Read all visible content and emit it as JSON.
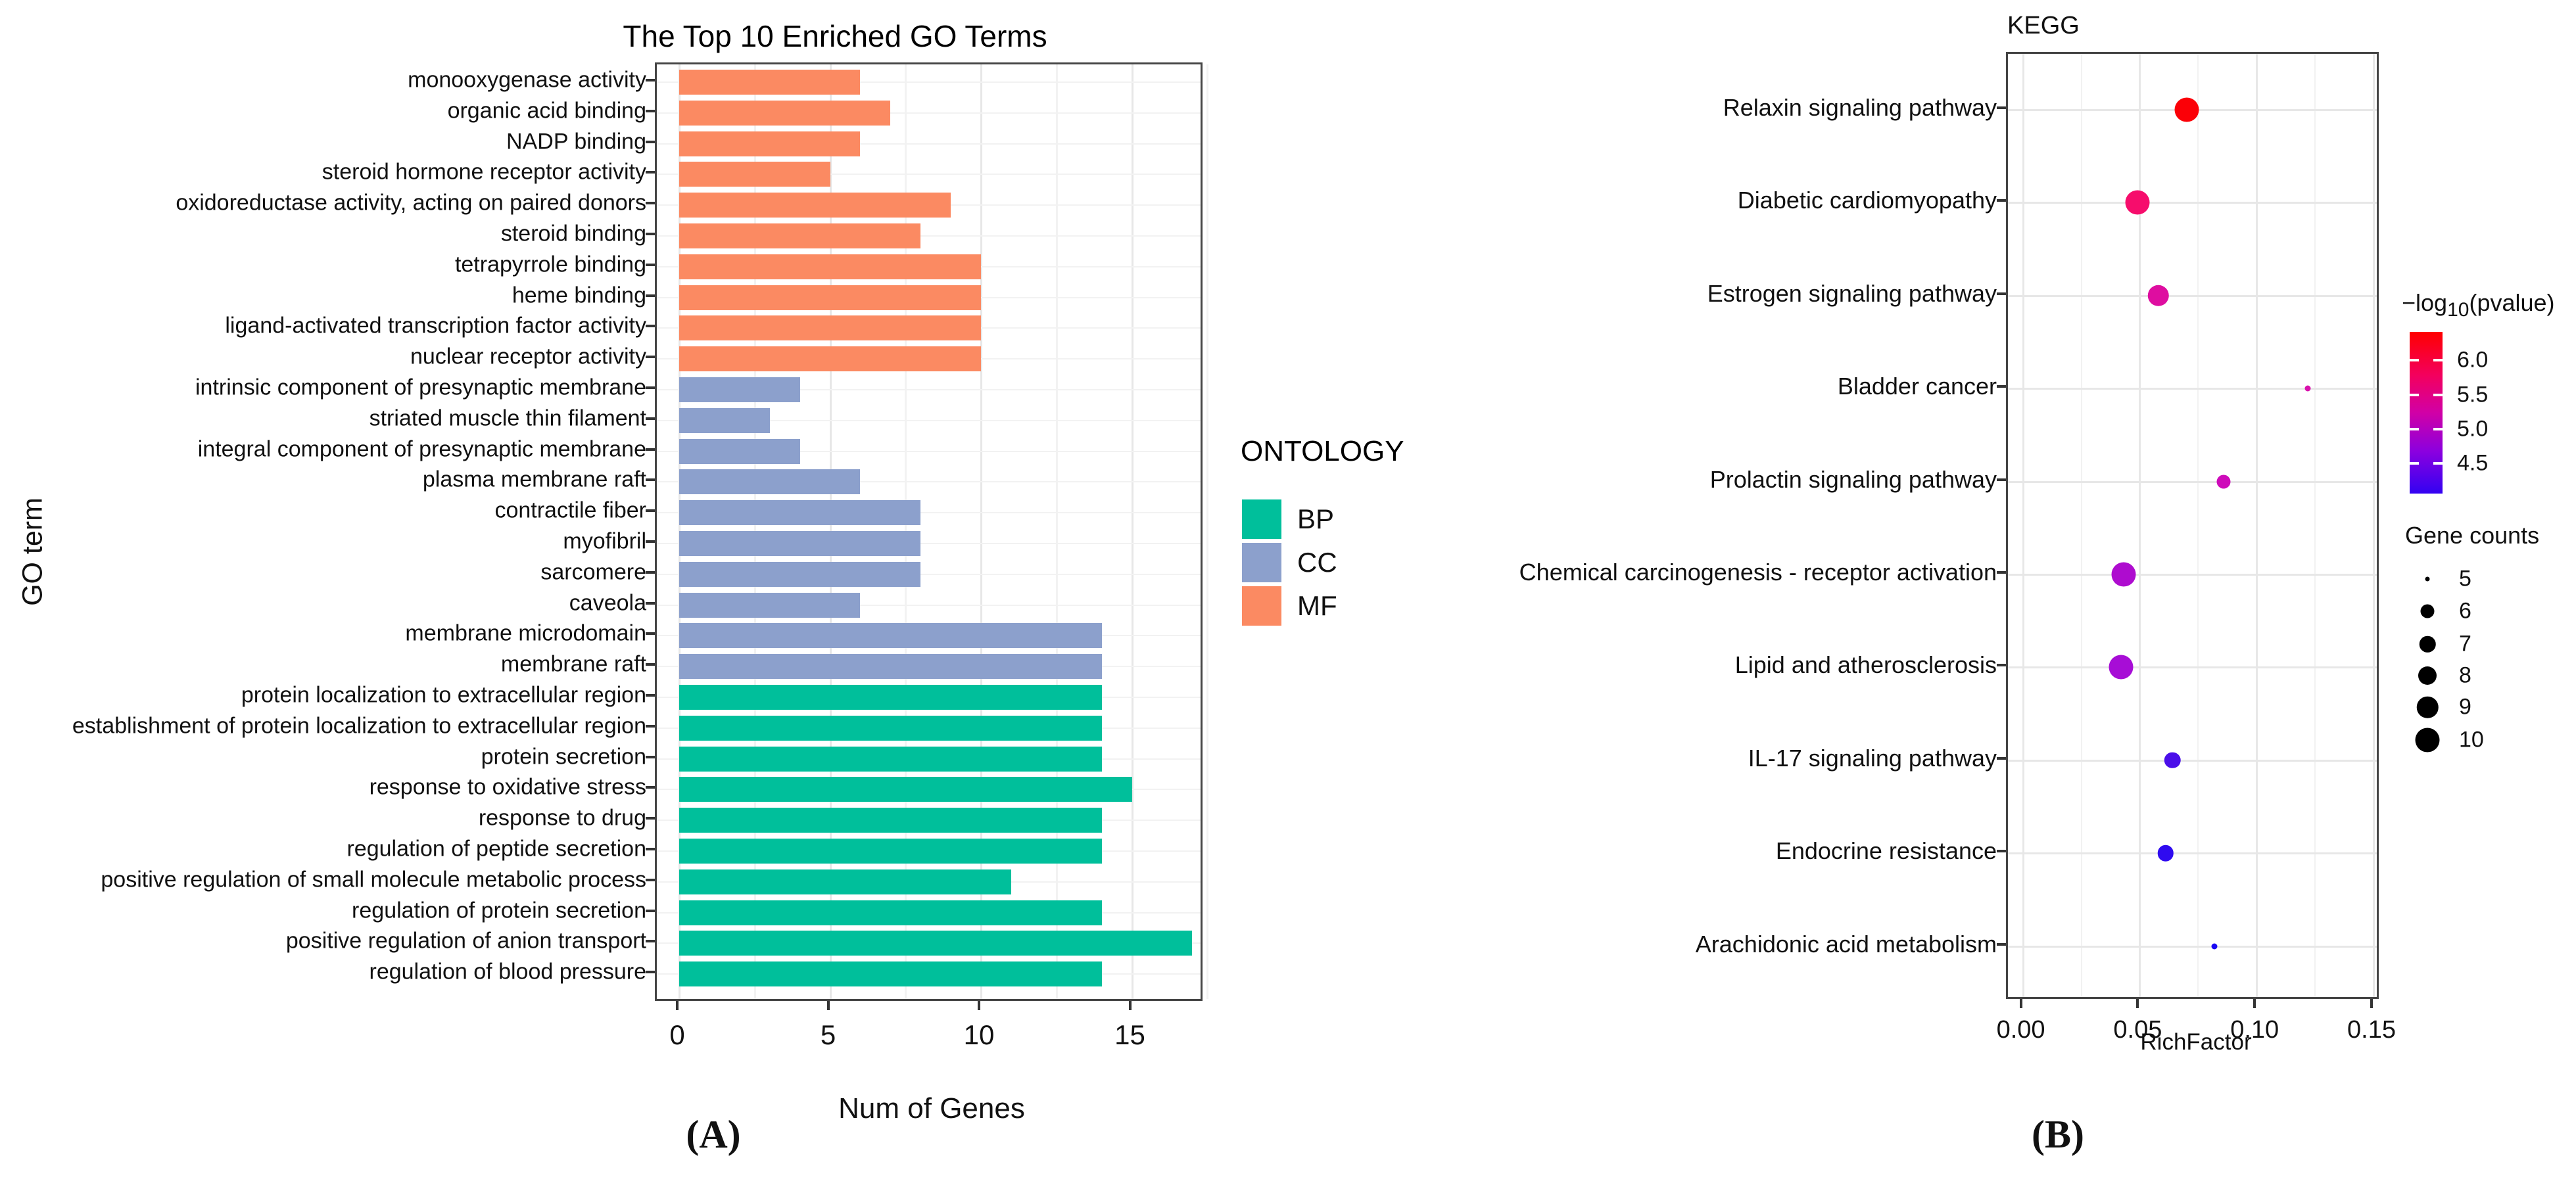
{
  "figure": {
    "panel_a_caption": "(A)",
    "panel_b_caption": "(B)"
  },
  "chart_data": [
    {
      "type": "bar",
      "orientation": "horizontal",
      "title": "The Top 10 Enriched GO Terms",
      "xlabel": "Num of Genes",
      "ylabel": "GO term",
      "xlim": [
        0,
        17.4
      ],
      "xticks": [
        "0",
        "5",
        "10",
        "15"
      ],
      "grid": true,
      "legend": {
        "title": "ONTOLOGY",
        "position": "right",
        "entries": [
          {
            "label": "BP",
            "color": "#00BF9B"
          },
          {
            "label": "CC",
            "color": "#8CA0CC"
          },
          {
            "label": "MF",
            "color": "#FB8A62"
          }
        ]
      },
      "bars": [
        {
          "term": "monooxygenase activity",
          "ontology": "MF",
          "value": 6
        },
        {
          "term": "organic acid binding",
          "ontology": "MF",
          "value": 7
        },
        {
          "term": "NADP binding",
          "ontology": "MF",
          "value": 6
        },
        {
          "term": "steroid hormone receptor activity",
          "ontology": "MF",
          "value": 5
        },
        {
          "term": "oxidoreductase activity, acting on paired donors",
          "ontology": "MF",
          "value": 9
        },
        {
          "term": "steroid binding",
          "ontology": "MF",
          "value": 8
        },
        {
          "term": "tetrapyrrole binding",
          "ontology": "MF",
          "value": 10
        },
        {
          "term": "heme binding",
          "ontology": "MF",
          "value": 10
        },
        {
          "term": "ligand-activated transcription factor activity",
          "ontology": "MF",
          "value": 10
        },
        {
          "term": "nuclear receptor activity",
          "ontology": "MF",
          "value": 10
        },
        {
          "term": "intrinsic component of presynaptic membrane",
          "ontology": "CC",
          "value": 4
        },
        {
          "term": "striated muscle thin filament",
          "ontology": "CC",
          "value": 3
        },
        {
          "term": "integral component of presynaptic membrane",
          "ontology": "CC",
          "value": 4
        },
        {
          "term": "plasma membrane raft",
          "ontology": "CC",
          "value": 6
        },
        {
          "term": "contractile fiber",
          "ontology": "CC",
          "value": 8
        },
        {
          "term": "myofibril",
          "ontology": "CC",
          "value": 8
        },
        {
          "term": "sarcomere",
          "ontology": "CC",
          "value": 8
        },
        {
          "term": "caveola",
          "ontology": "CC",
          "value": 6
        },
        {
          "term": "membrane microdomain",
          "ontology": "CC",
          "value": 14
        },
        {
          "term": "membrane raft",
          "ontology": "CC",
          "value": 14
        },
        {
          "term": "protein localization to extracellular region",
          "ontology": "BP",
          "value": 14
        },
        {
          "term": "establishment of protein localization to extracellular region",
          "ontology": "BP",
          "value": 14
        },
        {
          "term": "protein secretion",
          "ontology": "BP",
          "value": 14
        },
        {
          "term": "response to oxidative stress",
          "ontology": "BP",
          "value": 15
        },
        {
          "term": "response to drug",
          "ontology": "BP",
          "value": 14
        },
        {
          "term": "regulation of peptide secretion",
          "ontology": "BP",
          "value": 14
        },
        {
          "term": "positive regulation of small molecule metabolic process",
          "ontology": "BP",
          "value": 11
        },
        {
          "term": "regulation of protein secretion",
          "ontology": "BP",
          "value": 14
        },
        {
          "term": "positive regulation of anion transport",
          "ontology": "BP",
          "value": 17
        },
        {
          "term": "regulation of blood pressure",
          "ontology": "BP",
          "value": 14
        }
      ]
    },
    {
      "type": "scatter",
      "title": "KEGG",
      "xlabel": "RichFactor",
      "xlim": [
        -0.006,
        0.153
      ],
      "xticks": [
        "0.00",
        "0.05",
        "0.10",
        "0.15"
      ],
      "xtick_values": [
        0.0,
        0.05,
        0.1,
        0.15
      ],
      "grid": true,
      "color_legend": {
        "title_prefix": "−log",
        "title_sub": "10",
        "title_suffix": "(pvalue)",
        "ticks": [
          "6.0",
          "5.5",
          "5.0",
          "4.5"
        ],
        "top_color": "#FF0000",
        "bottom_color": "#3302F2"
      },
      "size_legend": {
        "title": "Gene counts",
        "values": [
          "5",
          "6",
          "7",
          "8",
          "9",
          "10"
        ]
      },
      "points": [
        {
          "pathway": "Relaxin signaling pathway",
          "rich_factor": 0.07,
          "gene_count": 10,
          "neg_log10_pvalue": 6.3,
          "color": "#FB0007"
        },
        {
          "pathway": "Diabetic cardiomyopathy",
          "rich_factor": 0.049,
          "gene_count": 10,
          "neg_log10_pvalue": 5.6,
          "color": "#F60D6C"
        },
        {
          "pathway": "Estrogen signaling pathway",
          "rich_factor": 0.058,
          "gene_count": 9,
          "neg_log10_pvalue": 5.2,
          "color": "#DE0DA0"
        },
        {
          "pathway": "Bladder cancer",
          "rich_factor": 0.122,
          "gene_count": 5,
          "neg_log10_pvalue": 5.1,
          "color": "#D911AC"
        },
        {
          "pathway": "Prolactin signaling pathway",
          "rich_factor": 0.086,
          "gene_count": 6,
          "neg_log10_pvalue": 5.0,
          "color": "#CE0BBA"
        },
        {
          "pathway": "Chemical carcinogenesis - receptor activation",
          "rich_factor": 0.043,
          "gene_count": 10,
          "neg_log10_pvalue": 4.8,
          "color": "#AE0CCF"
        },
        {
          "pathway": "Lipid and atherosclerosis",
          "rich_factor": 0.042,
          "gene_count": 10,
          "neg_log10_pvalue": 4.8,
          "color": "#A70DD6"
        },
        {
          "pathway": "IL-17 signaling pathway",
          "rich_factor": 0.064,
          "gene_count": 7,
          "neg_log10_pvalue": 4.4,
          "color": "#4A0EE9"
        },
        {
          "pathway": "Endocrine resistance",
          "rich_factor": 0.061,
          "gene_count": 7,
          "neg_log10_pvalue": 4.3,
          "color": "#2F0BF0"
        },
        {
          "pathway": "Arachidonic acid metabolism",
          "rich_factor": 0.082,
          "gene_count": 5,
          "neg_log10_pvalue": 4.15,
          "color": "#1B09F4"
        }
      ]
    }
  ]
}
